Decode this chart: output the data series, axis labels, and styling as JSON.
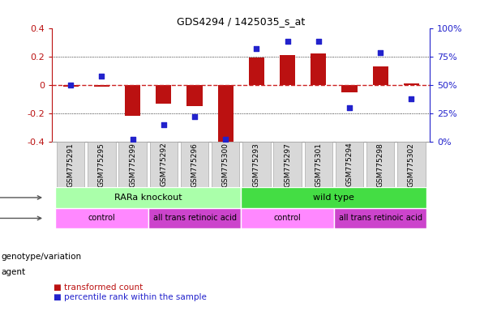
{
  "title": "GDS4294 / 1425035_s_at",
  "samples": [
    "GSM775291",
    "GSM775295",
    "GSM775299",
    "GSM775292",
    "GSM775296",
    "GSM775300",
    "GSM775293",
    "GSM775297",
    "GSM775301",
    "GSM775294",
    "GSM775298",
    "GSM775302"
  ],
  "bar_values": [
    -0.01,
    -0.01,
    -0.22,
    -0.13,
    -0.15,
    -0.4,
    0.19,
    0.21,
    0.22,
    -0.05,
    0.13,
    0.01
  ],
  "dot_values": [
    50,
    58,
    2,
    15,
    22,
    2,
    82,
    88,
    88,
    30,
    78,
    38
  ],
  "bar_color": "#bb1111",
  "dot_color": "#2222cc",
  "zero_line_color": "#cc2222",
  "dotted_line_color": "#000000",
  "ylim": [
    -0.4,
    0.4
  ],
  "y2lim": [
    0,
    100
  ],
  "yticks": [
    -0.4,
    -0.2,
    0.0,
    0.2,
    0.4
  ],
  "y2ticks": [
    0,
    25,
    50,
    75,
    100
  ],
  "ytick_labels": [
    "-0.4",
    "-0.2",
    "0",
    "0.2",
    "0.4"
  ],
  "y2tick_labels": [
    "0%",
    "25%",
    "50%",
    "75%",
    "100%"
  ],
  "groups": [
    {
      "label": "RARa knockout",
      "color": "#aaffaa",
      "dark_color": "#44dd44",
      "start": 0,
      "end": 5
    },
    {
      "label": "wild type",
      "color": "#44dd44",
      "dark_color": "#44dd44",
      "start": 6,
      "end": 11
    }
  ],
  "agents": [
    {
      "label": "control",
      "color": "#ff88ff",
      "start": 0,
      "end": 2
    },
    {
      "label": "all trans retinoic acid",
      "color": "#cc44cc",
      "start": 3,
      "end": 5
    },
    {
      "label": "control",
      "color": "#ff88ff",
      "start": 6,
      "end": 8
    },
    {
      "label": "all trans retinoic acid",
      "color": "#cc44cc",
      "start": 9,
      "end": 11
    }
  ],
  "legend_items": [
    {
      "label": "transformed count",
      "color": "#bb1111"
    },
    {
      "label": "percentile rank within the sample",
      "color": "#2222cc"
    }
  ],
  "genotype_label": "genotype/variation",
  "agent_label": "agent",
  "tick_box_color": "#d8d8d8",
  "tick_box_edge_color": "#aaaaaa",
  "bar_width": 0.5
}
